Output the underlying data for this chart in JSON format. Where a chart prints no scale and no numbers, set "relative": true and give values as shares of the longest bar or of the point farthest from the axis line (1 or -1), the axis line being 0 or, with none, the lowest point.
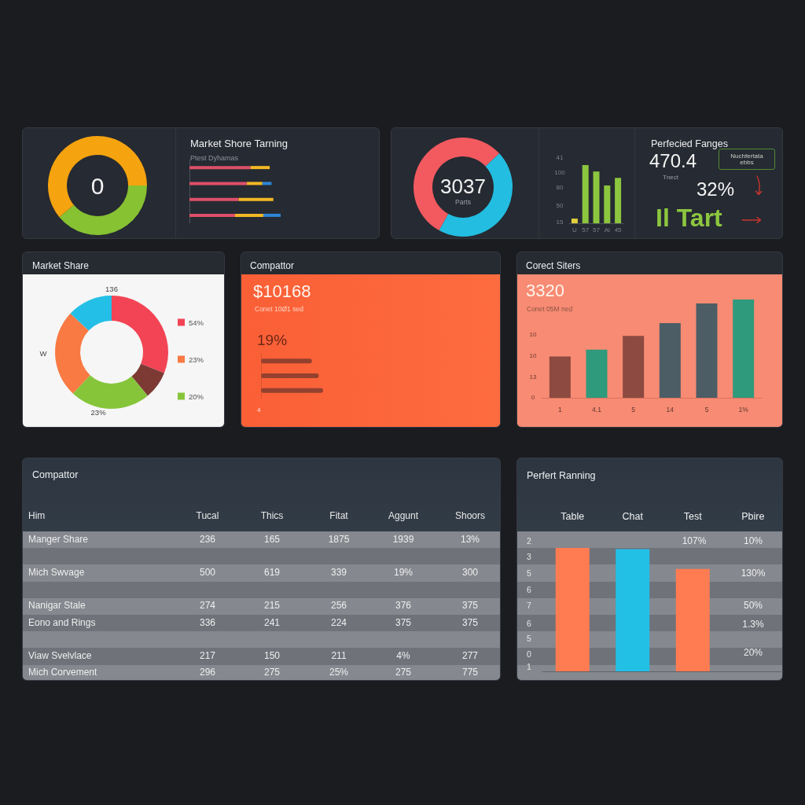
{
  "chart_data": [
    {
      "type": "donut",
      "categories": [
        null,
        null
      ],
      "values": [
        39,
        61
      ],
      "colors": [
        "#86c232",
        "#f5a30f"
      ],
      "annotations": [
        "0"
      ]
    },
    {
      "type": "bar",
      "title": "Market Shore Tarning",
      "subtitle": "Ptest Dyhamas",
      "orientation": "horizontal",
      "stacked": true,
      "relative": true,
      "categories": [
        null,
        null,
        null,
        null
      ],
      "series": [
        {
          "color": "#de4f6a",
          "values": [
            0.67,
            0.63,
            0.54,
            0.5
          ]
        },
        {
          "color": "#f2b824",
          "values": [
            0.21,
            0.17,
            0.38,
            0.31
          ]
        },
        {
          "color": "#2f86d6",
          "values": [
            null,
            0.1,
            null,
            0.19
          ]
        }
      ]
    },
    {
      "type": "donut",
      "categories": [
        null,
        null
      ],
      "values": [
        45,
        55
      ],
      "colors": [
        "#22bde0",
        "#f25a60"
      ],
      "annotations": [
        "3037",
        "Parts"
      ]
    },
    {
      "type": "bar",
      "relative": true,
      "categories": [
        "U",
        "57",
        "57",
        "Al",
        "45"
      ],
      "values": [
        0.08,
        1,
        0.89,
        0.65,
        0.78
      ],
      "colors": [
        "#e3cf3a",
        "#8cc63f",
        "#8cc63f",
        "#8cc63f",
        "#8cc63f"
      ],
      "annotations": [
        "41",
        "100",
        "80",
        "50",
        "15"
      ]
    },
    {
      "type": "other",
      "title": "Perfecied Fanges",
      "annotations": [
        "470.4",
        "Tnect",
        "32%",
        "Il Tart",
        "Nuchfertata\nebbs"
      ]
    },
    {
      "type": "donut",
      "title": "Market Share",
      "categories": [
        "54%",
        null,
        "20%",
        "23%",
        null
      ],
      "values": [
        31,
        8,
        23,
        25,
        13
      ],
      "colors": [
        "#f24455",
        "#7d3a34",
        "#86c53a",
        "#f97a43",
        "#24bfe6"
      ],
      "value_labels": [
        null,
        null,
        "23%",
        null,
        null
      ],
      "legend": "right",
      "annotations": [
        "136",
        "W"
      ]
    },
    {
      "type": "bar",
      "title": "Compattor",
      "orientation": "horizontal",
      "relative": true,
      "categories": [
        null,
        null,
        null
      ],
      "values": [
        0.82,
        0.93,
        1
      ],
      "color": "#94412f",
      "annotations": [
        "$10168",
        "Conet 10Ø1 sed",
        "19%",
        "4"
      ]
    },
    {
      "type": "bar",
      "title": "Corect Siters",
      "relative": true,
      "categories": [
        "1",
        "4.1",
        "5",
        "14",
        "5",
        "1%"
      ],
      "values": [
        0.42,
        0.49,
        0.63,
        0.76,
        0.96,
        1
      ],
      "colors": [
        "#8c4a40",
        "#2f9a7c",
        "#8c4a40",
        "#4c5d66",
        "#4c5d66",
        "#2f9a7c"
      ],
      "annotations": [
        "3320",
        "Conet 05M ned",
        "10",
        "10",
        "13",
        "0"
      ]
    },
    {
      "type": "other",
      "title": "Compattor",
      "ylabel": "Him",
      "categories": [
        "Tucal",
        "Thics",
        "Fitat",
        "Aggunt",
        "Shoors"
      ],
      "y_categories": [
        "Manger Share",
        null,
        "Mich Swvage",
        null,
        "Nanigar Stale",
        "Eono and Rings",
        null,
        "Viaw Svelvlace",
        "Mich Corvement"
      ],
      "cell_labels": [
        [
          "236",
          "165",
          "1875",
          "1939",
          "13%"
        ],
        [
          null,
          null,
          null,
          null,
          null
        ],
        [
          "500",
          "619",
          "339",
          "19%",
          "300"
        ],
        [
          null,
          null,
          null,
          null,
          null
        ],
        [
          "274",
          "215",
          "256",
          "376",
          "375"
        ],
        [
          "336",
          "241",
          "224",
          "375",
          "375"
        ],
        [
          null,
          null,
          null,
          null,
          null
        ],
        [
          "217",
          "150",
          "211",
          "4%",
          "277"
        ],
        [
          "296",
          "275",
          "25%",
          "275",
          "775"
        ]
      ]
    },
    {
      "type": "bar",
      "title": "Perfert Ranning",
      "relative": true,
      "categories": [
        "Table",
        "Chat",
        "Test",
        "Pbire"
      ],
      "values": [
        1,
        0.99,
        0.83,
        null
      ],
      "colors": [
        "#ff7b52",
        "#23c0e6",
        "#ff7b52",
        null
      ],
      "annotations": [
        "2",
        "3",
        "5",
        "6",
        "7",
        "6",
        "5",
        "0",
        "1",
        "107%",
        "10%",
        "130%",
        "50%",
        "1.3%",
        "20%"
      ]
    }
  ]
}
